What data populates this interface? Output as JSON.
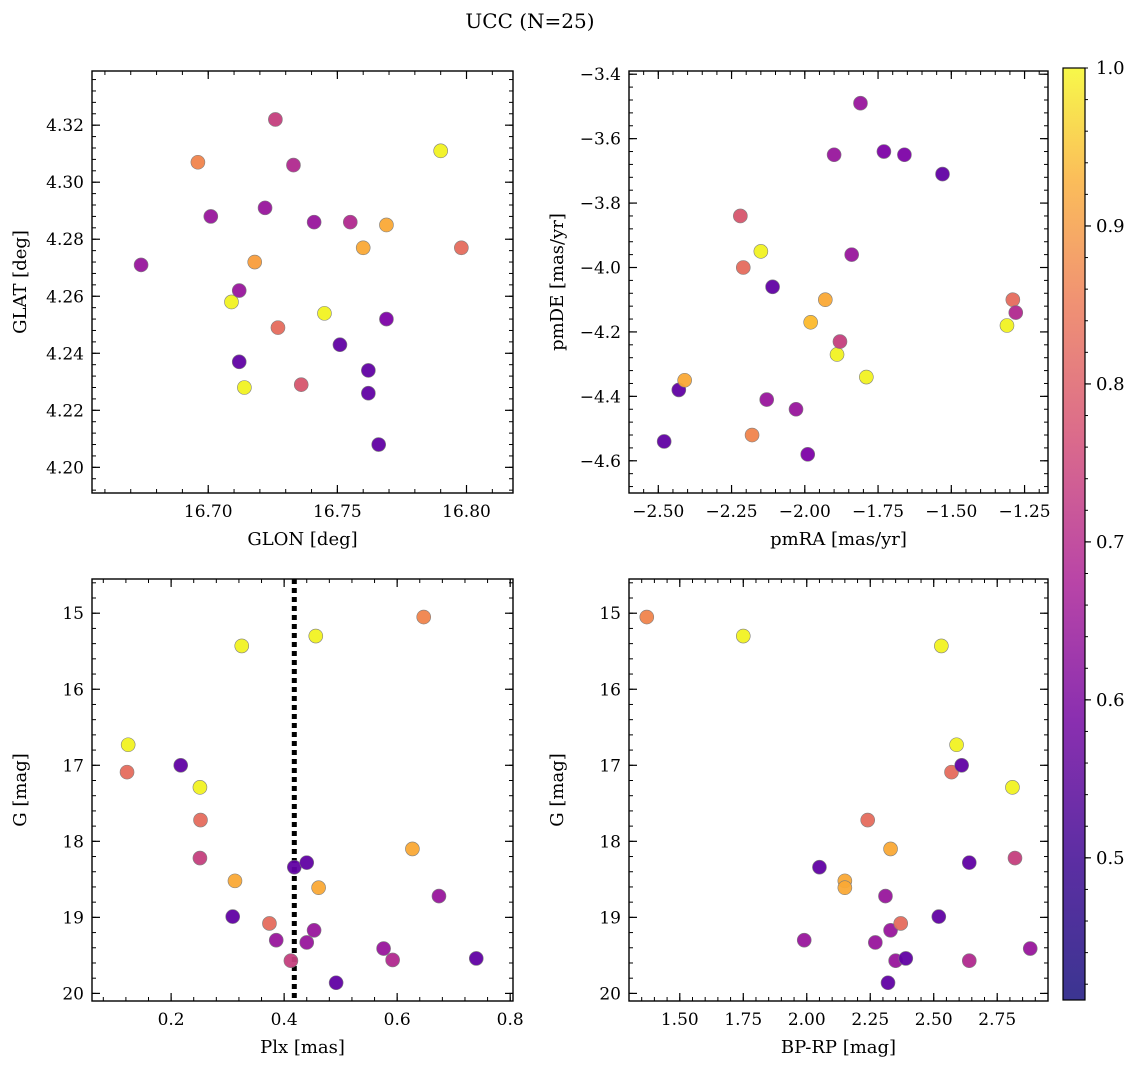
{
  "title": "UCC (N=25)",
  "colorbar": {
    "range": [
      0.41,
      1.0
    ],
    "ticks": [
      0.5,
      0.6,
      0.7,
      0.8,
      0.9
    ],
    "top_label": "1.0",
    "tick_labels": [
      "0.5",
      "0.6",
      "0.7",
      "0.8",
      "0.9"
    ],
    "colormap": "plasma"
  },
  "chart_data": [
    {
      "type": "scatter",
      "xlabel": "GLON [deg]",
      "ylabel": "GLAT [deg]",
      "xlim": [
        16.655,
        16.818
      ],
      "ylim": [
        4.191,
        4.339
      ],
      "xticks": [
        16.7,
        16.75,
        16.8
      ],
      "xtick_labels": [
        "16.70",
        "16.75",
        "16.80"
      ],
      "yticks": [
        4.2,
        4.22,
        4.24,
        4.26,
        4.28,
        4.3,
        4.32
      ],
      "ytick_labels": [
        "4.20",
        "4.22",
        "4.24",
        "4.26",
        "4.28",
        "4.30",
        "4.32"
      ],
      "invert_y": false,
      "points": [
        {
          "x": 16.674,
          "y": 4.271,
          "c": 0.55
        },
        {
          "x": 16.696,
          "y": 4.307,
          "c": 0.8
        },
        {
          "x": 16.701,
          "y": 4.288,
          "c": 0.55
        },
        {
          "x": 16.709,
          "y": 4.258,
          "c": 0.99
        },
        {
          "x": 16.712,
          "y": 4.262,
          "c": 0.55
        },
        {
          "x": 16.712,
          "y": 4.237,
          "c": 0.45
        },
        {
          "x": 16.714,
          "y": 4.228,
          "c": 0.99
        },
        {
          "x": 16.718,
          "y": 4.272,
          "c": 0.85
        },
        {
          "x": 16.722,
          "y": 4.291,
          "c": 0.55
        },
        {
          "x": 16.726,
          "y": 4.322,
          "c": 0.65
        },
        {
          "x": 16.727,
          "y": 4.249,
          "c": 0.75
        },
        {
          "x": 16.733,
          "y": 4.306,
          "c": 0.6
        },
        {
          "x": 16.736,
          "y": 4.229,
          "c": 0.7
        },
        {
          "x": 16.741,
          "y": 4.286,
          "c": 0.55
        },
        {
          "x": 16.745,
          "y": 4.254,
          "c": 0.99
        },
        {
          "x": 16.751,
          "y": 4.243,
          "c": 0.45
        },
        {
          "x": 16.755,
          "y": 4.286,
          "c": 0.6
        },
        {
          "x": 16.76,
          "y": 4.277,
          "c": 0.87
        },
        {
          "x": 16.762,
          "y": 4.234,
          "c": 0.45
        },
        {
          "x": 16.762,
          "y": 4.226,
          "c": 0.45
        },
        {
          "x": 16.766,
          "y": 4.208,
          "c": 0.45
        },
        {
          "x": 16.769,
          "y": 4.285,
          "c": 0.87
        },
        {
          "x": 16.769,
          "y": 4.252,
          "c": 0.5
        },
        {
          "x": 16.79,
          "y": 4.311,
          "c": 0.99
        },
        {
          "x": 16.798,
          "y": 4.277,
          "c": 0.75
        }
      ]
    },
    {
      "type": "scatter",
      "xlabel": "pmRA [mas/yr]",
      "ylabel": "pmDE [mas/yr]",
      "xlim": [
        -2.6,
        -1.17
      ],
      "ylim": [
        -4.7,
        -3.39
      ],
      "xticks": [
        -2.5,
        -2.25,
        -2.0,
        -1.75,
        -1.5,
        -1.25
      ],
      "xtick_labels": [
        "−2.50",
        "−2.25",
        "−2.00",
        "−1.75",
        "−1.50",
        "−1.25"
      ],
      "yticks": [
        -4.6,
        -4.4,
        -4.2,
        -4.0,
        -3.8,
        -3.6,
        -3.4
      ],
      "ytick_labels": [
        "−4.6",
        "−4.4",
        "−4.2",
        "−4.0",
        "−3.8",
        "−3.6",
        "−3.4"
      ],
      "invert_y": false,
      "points": [
        {
          "x": -2.48,
          "y": -4.54,
          "c": 0.45
        },
        {
          "x": -2.43,
          "y": -4.38,
          "c": 0.45
        },
        {
          "x": -2.41,
          "y": -4.35,
          "c": 0.87
        },
        {
          "x": -2.22,
          "y": -3.84,
          "c": 0.7
        },
        {
          "x": -2.21,
          "y": -4.0,
          "c": 0.75
        },
        {
          "x": -2.18,
          "y": -4.52,
          "c": 0.8
        },
        {
          "x": -2.15,
          "y": -3.95,
          "c": 0.99
        },
        {
          "x": -2.13,
          "y": -4.41,
          "c": 0.55
        },
        {
          "x": -2.11,
          "y": -4.06,
          "c": 0.45
        },
        {
          "x": -2.03,
          "y": -4.44,
          "c": 0.55
        },
        {
          "x": -1.99,
          "y": -4.58,
          "c": 0.5
        },
        {
          "x": -1.98,
          "y": -4.17,
          "c": 0.9
        },
        {
          "x": -1.93,
          "y": -4.1,
          "c": 0.87
        },
        {
          "x": -1.9,
          "y": -3.65,
          "c": 0.55
        },
        {
          "x": -1.89,
          "y": -4.27,
          "c": 0.99
        },
        {
          "x": -1.88,
          "y": -4.23,
          "c": 0.65
        },
        {
          "x": -1.84,
          "y": -3.96,
          "c": 0.55
        },
        {
          "x": -1.81,
          "y": -3.49,
          "c": 0.55
        },
        {
          "x": -1.79,
          "y": -4.34,
          "c": 0.99
        },
        {
          "x": -1.73,
          "y": -3.64,
          "c": 0.5
        },
        {
          "x": -1.66,
          "y": -3.65,
          "c": 0.5
        },
        {
          "x": -1.53,
          "y": -3.71,
          "c": 0.45
        },
        {
          "x": -1.31,
          "y": -4.18,
          "c": 0.99
        },
        {
          "x": -1.29,
          "y": -4.1,
          "c": 0.75
        },
        {
          "x": -1.28,
          "y": -4.14,
          "c": 0.6
        }
      ]
    },
    {
      "type": "scatter",
      "xlabel": "Plx [mas]",
      "ylabel": "G [mag]",
      "xlim": [
        0.06,
        0.805
      ],
      "ylim": [
        20.1,
        14.55
      ],
      "xticks": [
        0.2,
        0.4,
        0.6,
        0.8
      ],
      "xtick_labels": [
        "0.2",
        "0.4",
        "0.6",
        "0.8"
      ],
      "yticks": [
        15,
        16,
        17,
        18,
        19,
        20
      ],
      "ytick_labels": [
        "15",
        "16",
        "17",
        "18",
        "19",
        "20"
      ],
      "invert_y": true,
      "vline": 0.418,
      "points": [
        {
          "x": 0.124,
          "y": 16.73,
          "c": 0.99
        },
        {
          "x": 0.122,
          "y": 17.09,
          "c": 0.75
        },
        {
          "x": 0.217,
          "y": 17.0,
          "c": 0.45
        },
        {
          "x": 0.251,
          "y": 17.29,
          "c": 0.99
        },
        {
          "x": 0.252,
          "y": 17.72,
          "c": 0.75
        },
        {
          "x": 0.251,
          "y": 18.22,
          "c": 0.65
        },
        {
          "x": 0.309,
          "y": 18.99,
          "c": 0.45
        },
        {
          "x": 0.313,
          "y": 18.52,
          "c": 0.87
        },
        {
          "x": 0.325,
          "y": 15.43,
          "c": 0.99
        },
        {
          "x": 0.374,
          "y": 19.08,
          "c": 0.75
        },
        {
          "x": 0.386,
          "y": 19.3,
          "c": 0.55
        },
        {
          "x": 0.412,
          "y": 19.57,
          "c": 0.65
        },
        {
          "x": 0.418,
          "y": 18.34,
          "c": 0.45
        },
        {
          "x": 0.44,
          "y": 18.28,
          "c": 0.45
        },
        {
          "x": 0.44,
          "y": 19.33,
          "c": 0.55
        },
        {
          "x": 0.453,
          "y": 19.17,
          "c": 0.55
        },
        {
          "x": 0.456,
          "y": 15.3,
          "c": 0.99
        },
        {
          "x": 0.461,
          "y": 18.61,
          "c": 0.87
        },
        {
          "x": 0.492,
          "y": 19.86,
          "c": 0.45
        },
        {
          "x": 0.576,
          "y": 19.41,
          "c": 0.55
        },
        {
          "x": 0.592,
          "y": 19.56,
          "c": 0.6
        },
        {
          "x": 0.627,
          "y": 18.1,
          "c": 0.87
        },
        {
          "x": 0.647,
          "y": 15.05,
          "c": 0.8
        },
        {
          "x": 0.674,
          "y": 18.72,
          "c": 0.55
        },
        {
          "x": 0.74,
          "y": 19.54,
          "c": 0.45
        }
      ]
    },
    {
      "type": "scatter",
      "xlabel": "BP-RP [mag]",
      "ylabel": "G [mag]",
      "xlim": [
        1.3,
        2.95
      ],
      "ylim": [
        20.1,
        14.55
      ],
      "xticks": [
        1.5,
        1.75,
        2.0,
        2.25,
        2.5,
        2.75
      ],
      "xtick_labels": [
        "1.50",
        "1.75",
        "2.00",
        "2.25",
        "2.50",
        "2.75"
      ],
      "yticks": [
        15,
        16,
        17,
        18,
        19,
        20
      ],
      "ytick_labels": [
        "15",
        "16",
        "17",
        "18",
        "19",
        "20"
      ],
      "invert_y": true,
      "points": [
        {
          "x": 1.37,
          "y": 15.05,
          "c": 0.8
        },
        {
          "x": 1.75,
          "y": 15.3,
          "c": 0.99
        },
        {
          "x": 1.99,
          "y": 19.3,
          "c": 0.55
        },
        {
          "x": 2.05,
          "y": 18.34,
          "c": 0.45
        },
        {
          "x": 2.15,
          "y": 18.52,
          "c": 0.87
        },
        {
          "x": 2.15,
          "y": 18.61,
          "c": 0.87
        },
        {
          "x": 2.24,
          "y": 17.72,
          "c": 0.75
        },
        {
          "x": 2.27,
          "y": 19.33,
          "c": 0.55
        },
        {
          "x": 2.31,
          "y": 18.72,
          "c": 0.55
        },
        {
          "x": 2.32,
          "y": 19.86,
          "c": 0.45
        },
        {
          "x": 2.33,
          "y": 19.17,
          "c": 0.55
        },
        {
          "x": 2.33,
          "y": 18.1,
          "c": 0.87
        },
        {
          "x": 2.35,
          "y": 19.57,
          "c": 0.55
        },
        {
          "x": 2.37,
          "y": 19.08,
          "c": 0.75
        },
        {
          "x": 2.39,
          "y": 19.54,
          "c": 0.45
        },
        {
          "x": 2.52,
          "y": 18.99,
          "c": 0.45
        },
        {
          "x": 2.53,
          "y": 15.43,
          "c": 0.99
        },
        {
          "x": 2.57,
          "y": 17.09,
          "c": 0.75
        },
        {
          "x": 2.59,
          "y": 16.73,
          "c": 0.99
        },
        {
          "x": 2.61,
          "y": 17.0,
          "c": 0.45
        },
        {
          "x": 2.64,
          "y": 18.28,
          "c": 0.45
        },
        {
          "x": 2.64,
          "y": 19.57,
          "c": 0.6
        },
        {
          "x": 2.81,
          "y": 17.29,
          "c": 0.99
        },
        {
          "x": 2.82,
          "y": 18.22,
          "c": 0.65
        },
        {
          "x": 2.88,
          "y": 19.41,
          "c": 0.55
        }
      ]
    }
  ]
}
